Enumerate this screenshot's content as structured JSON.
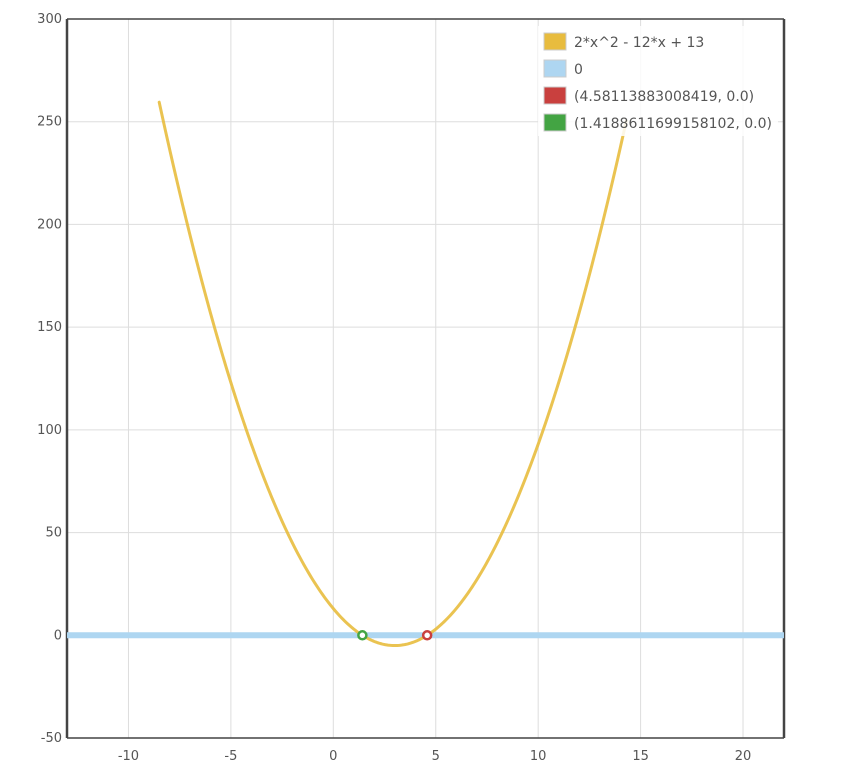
{
  "chart_data": {
    "type": "line",
    "title": "",
    "xlabel": "",
    "ylabel": "",
    "xlim": [
      -13,
      22
    ],
    "ylim": [
      -50,
      300
    ],
    "x_ticks": [
      -10,
      -5,
      0,
      5,
      10,
      15,
      20
    ],
    "y_ticks": [
      -50,
      0,
      50,
      100,
      150,
      200,
      250,
      300
    ],
    "grid": true,
    "legend_position": "top-right",
    "series": [
      {
        "name": "2*x^2 - 12*x + 13",
        "kind": "function",
        "coefficients": {
          "a": 2,
          "b": -12,
          "c": 13
        },
        "domain": [
          -8.5,
          14.3
        ],
        "color": "#e8bc3e"
      },
      {
        "name": "0",
        "kind": "horizontal-line",
        "y": 0,
        "color": "#aed6f1"
      },
      {
        "name": "(4.58113883008419, 0.0)",
        "kind": "point",
        "x": 4.58113883008419,
        "y": 0.0,
        "color": "#c9403e"
      },
      {
        "name": "(1.4188611699158102, 0.0)",
        "kind": "point",
        "x": 1.4188611699158102,
        "y": 0.0,
        "color": "#43a443"
      }
    ]
  }
}
